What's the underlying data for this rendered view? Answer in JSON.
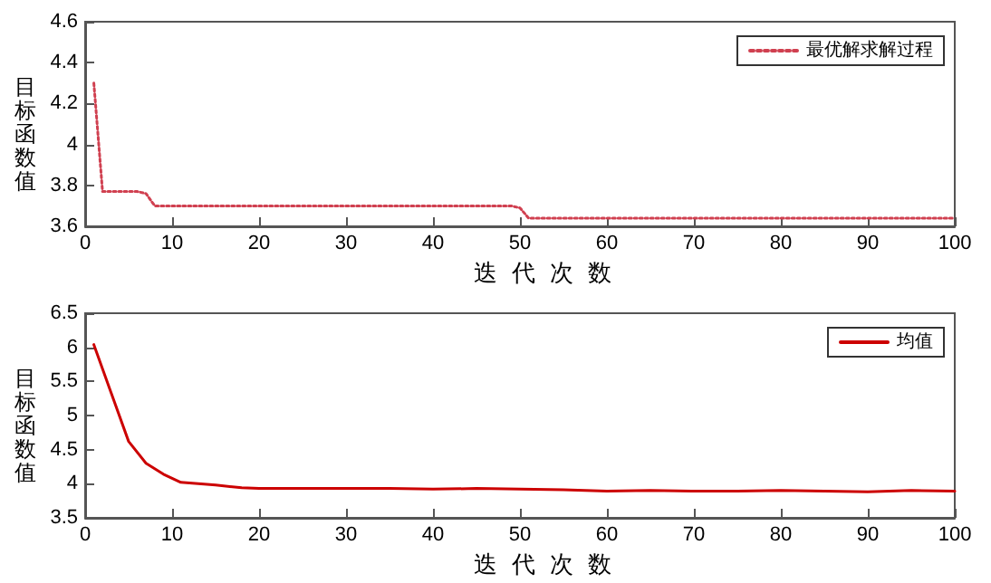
{
  "chart_data": [
    {
      "type": "line",
      "xlabel": "迭代次数",
      "ylabel": "目标函数值",
      "xlim": [
        0,
        100
      ],
      "xticks": [
        0,
        10,
        20,
        30,
        40,
        50,
        60,
        70,
        80,
        90,
        100
      ],
      "ylim": [
        3.6,
        4.6
      ],
      "yticks": [
        3.6,
        3.8,
        4,
        4.2,
        4.4,
        4.6
      ],
      "grid": false,
      "legend": "top right",
      "line_style": "dotted",
      "marker": "none",
      "series": [
        {
          "name": "最优解求解过程",
          "color": "#d04050",
          "x": [
            1,
            2,
            6,
            7,
            8,
            49,
            50,
            51,
            100
          ],
          "values": [
            4.3,
            3.77,
            3.77,
            3.76,
            3.7,
            3.7,
            3.69,
            3.64,
            3.64
          ]
        }
      ]
    },
    {
      "type": "line",
      "xlabel": "迭代次数",
      "ylabel": "目标函数值",
      "xlim": [
        0,
        100
      ],
      "xticks": [
        0,
        10,
        20,
        30,
        40,
        50,
        60,
        70,
        80,
        90,
        100
      ],
      "ylim": [
        3.5,
        6.5
      ],
      "yticks": [
        3.5,
        4,
        4.5,
        5,
        5.5,
        6,
        6.5
      ],
      "grid": false,
      "legend": "top right",
      "line_style": "solid",
      "marker": "none",
      "series": [
        {
          "name": "均值",
          "color": "#cc0000",
          "x": [
            1,
            3,
            5,
            7,
            9,
            11,
            15,
            18,
            20,
            25,
            30,
            35,
            40,
            45,
            50,
            55,
            60,
            65,
            70,
            75,
            80,
            85,
            90,
            95,
            100
          ],
          "values": [
            6.04,
            5.33,
            4.62,
            4.3,
            4.14,
            4.02,
            3.98,
            3.94,
            3.93,
            3.93,
            3.93,
            3.93,
            3.92,
            3.93,
            3.92,
            3.91,
            3.89,
            3.9,
            3.89,
            3.89,
            3.9,
            3.89,
            3.88,
            3.9,
            3.89
          ]
        }
      ]
    }
  ]
}
